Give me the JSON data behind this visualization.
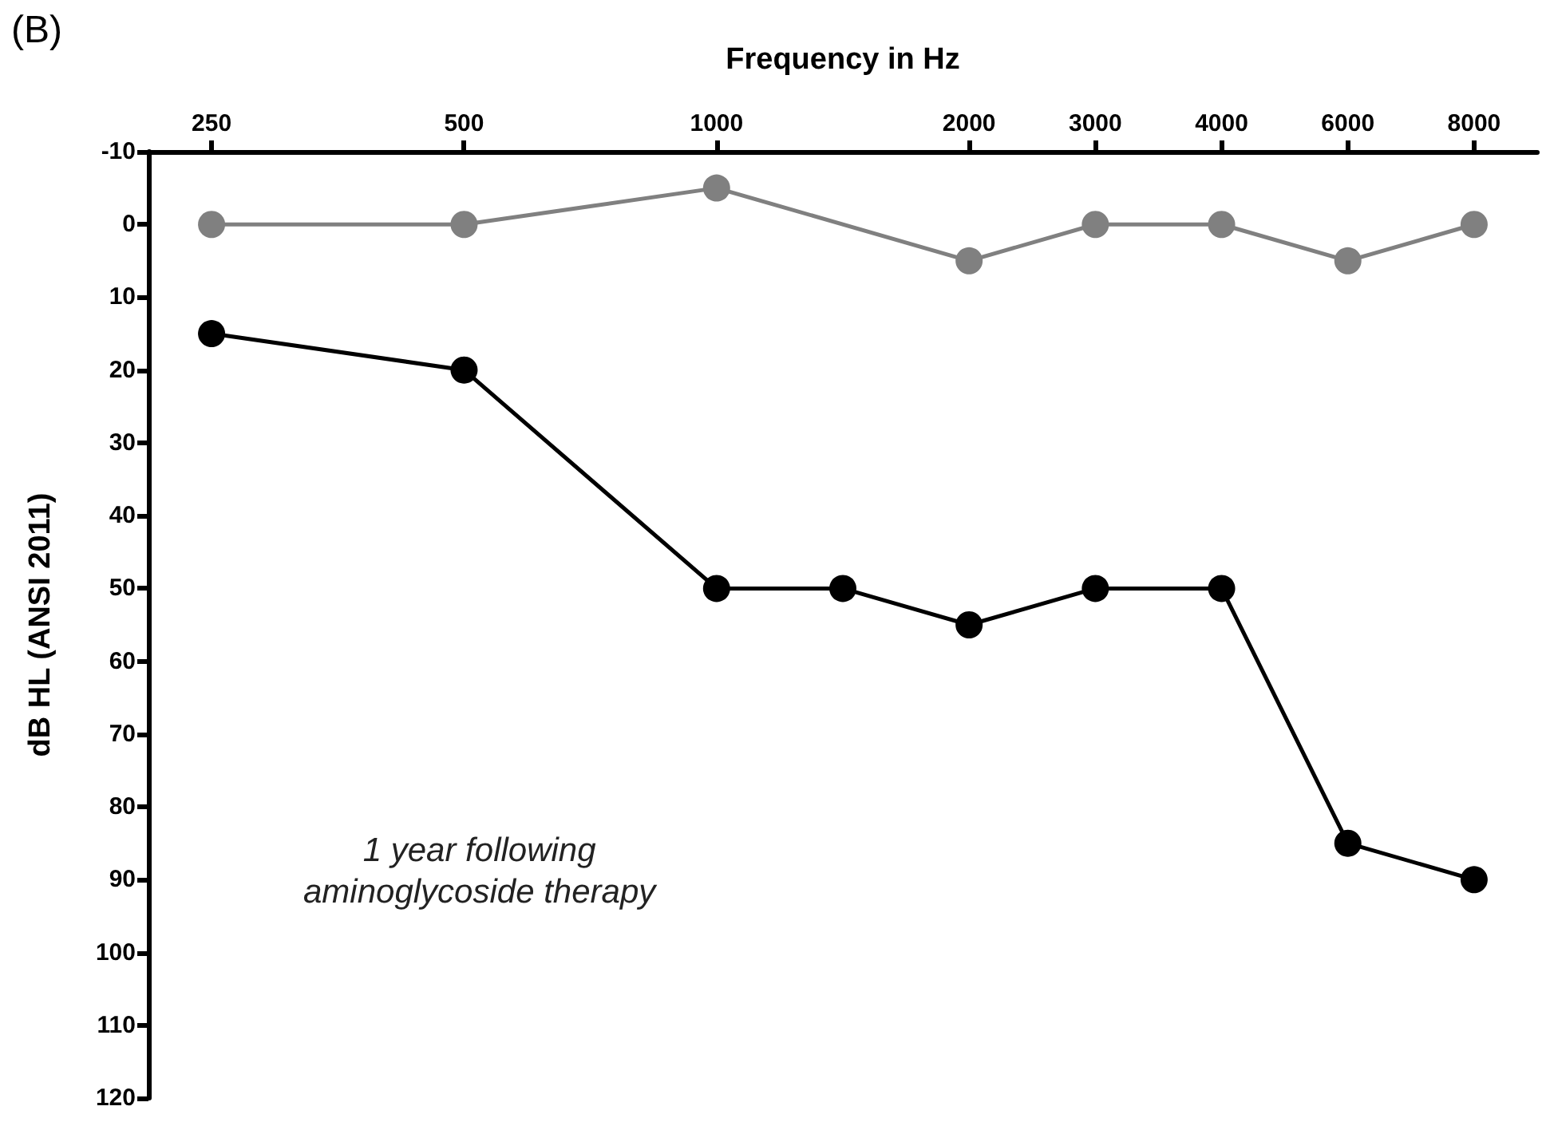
{
  "chart_data": {
    "type": "line",
    "title": "(B)",
    "xlabel": "Frequency in Hz",
    "ylabel": "dB HL (ANSI 2011)",
    "annotations": [
      "1 year following\naminoglycoside therapy"
    ],
    "categories": [
      "250",
      null,
      "500",
      null,
      "1000",
      null,
      "2000",
      "3000",
      "4000",
      "6000",
      "8000"
    ],
    "series": [
      {
        "color": "#808080",
        "values": [
          0,
          null,
          0,
          null,
          -5,
          null,
          5,
          0,
          0,
          5,
          0
        ]
      },
      {
        "color": "#000000",
        "values": [
          15,
          null,
          20,
          null,
          50,
          50,
          55,
          50,
          50,
          85,
          90
        ]
      }
    ],
    "ylim": [
      120,
      -10
    ],
    "yticks": [
      -10,
      0,
      10,
      20,
      30,
      40,
      50,
      60,
      70,
      80,
      90,
      100,
      110,
      120
    ],
    "grid": false,
    "marker": "circle",
    "line_style": "solid"
  }
}
